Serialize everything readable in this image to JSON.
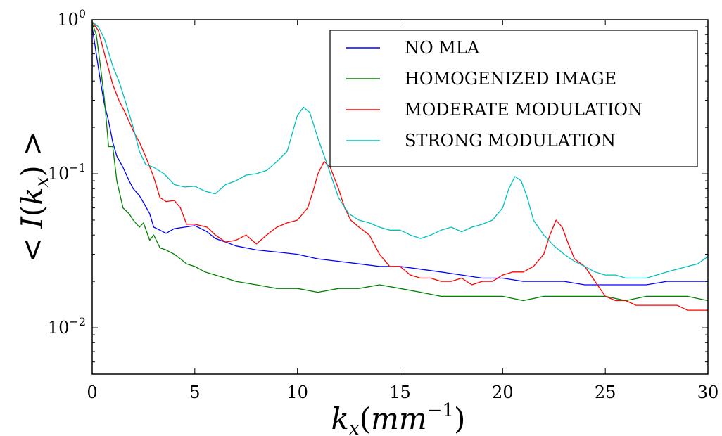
{
  "chart_data": {
    "type": "line",
    "title": "",
    "xlabel": "k_x(mm^-1)",
    "ylabel": "< I(k_x) >",
    "xlim": [
      0,
      30
    ],
    "ylim": [
      0.005,
      1
    ],
    "yscale": "log",
    "grid": false,
    "legend_position": "top-right",
    "x_ticks": [
      0,
      5,
      10,
      15,
      20,
      25,
      30
    ],
    "x_tick_labels": [
      "0",
      "5",
      "10",
      "15",
      "20",
      "25",
      "30"
    ],
    "y_ticks": [
      1,
      0.1,
      0.01
    ],
    "y_tick_labels": [
      {
        "base": "10",
        "exp": "0"
      },
      {
        "base": "10",
        "exp": "−1"
      },
      {
        "base": "10",
        "exp": "−2"
      }
    ],
    "series": [
      {
        "name": "NO MLA",
        "color": "#0000ff",
        "points": [
          [
            0,
            0.9
          ],
          [
            0.2,
            0.6
          ],
          [
            0.4,
            0.4
          ],
          [
            0.6,
            0.28
          ],
          [
            0.8,
            0.22
          ],
          [
            1,
            0.16
          ],
          [
            1.2,
            0.13
          ],
          [
            1.5,
            0.11
          ],
          [
            1.8,
            0.09
          ],
          [
            2,
            0.08
          ],
          [
            2.3,
            0.072
          ],
          [
            2.5,
            0.065
          ],
          [
            2.8,
            0.055
          ],
          [
            3,
            0.045
          ],
          [
            3.3,
            0.043
          ],
          [
            3.6,
            0.041
          ],
          [
            4,
            0.044
          ],
          [
            4.5,
            0.045
          ],
          [
            5,
            0.046
          ],
          [
            5.3,
            0.044
          ],
          [
            5.6,
            0.042
          ],
          [
            6,
            0.038
          ],
          [
            6.5,
            0.036
          ],
          [
            7,
            0.034
          ],
          [
            7.5,
            0.033
          ],
          [
            8,
            0.032
          ],
          [
            9,
            0.031
          ],
          [
            10,
            0.03
          ],
          [
            11,
            0.028
          ],
          [
            12,
            0.027
          ],
          [
            13,
            0.026
          ],
          [
            14,
            0.025
          ],
          [
            15,
            0.025
          ],
          [
            16,
            0.024
          ],
          [
            17,
            0.023
          ],
          [
            18,
            0.022
          ],
          [
            19,
            0.021
          ],
          [
            20,
            0.021
          ],
          [
            21,
            0.02
          ],
          [
            22,
            0.02
          ],
          [
            23,
            0.02
          ],
          [
            24,
            0.019
          ],
          [
            25,
            0.019
          ],
          [
            26,
            0.019
          ],
          [
            27,
            0.019
          ],
          [
            28,
            0.02
          ],
          [
            29,
            0.02
          ],
          [
            30,
            0.02
          ]
        ]
      },
      {
        "name": "HOMOGENIZED IMAGE",
        "color": "#008000",
        "points": [
          [
            0,
            0.95
          ],
          [
            0.2,
            0.8
          ],
          [
            0.4,
            0.5
          ],
          [
            0.6,
            0.3
          ],
          [
            0.8,
            0.15
          ],
          [
            1,
            0.15
          ],
          [
            1.2,
            0.09
          ],
          [
            1.5,
            0.06
          ],
          [
            1.8,
            0.055
          ],
          [
            2,
            0.05
          ],
          [
            2.3,
            0.045
          ],
          [
            2.5,
            0.048
          ],
          [
            2.8,
            0.037
          ],
          [
            3,
            0.04
          ],
          [
            3.3,
            0.033
          ],
          [
            3.6,
            0.032
          ],
          [
            4,
            0.03
          ],
          [
            4.3,
            0.028
          ],
          [
            4.6,
            0.026
          ],
          [
            5,
            0.025
          ],
          [
            5.5,
            0.023
          ],
          [
            6,
            0.022
          ],
          [
            6.5,
            0.021
          ],
          [
            7,
            0.02
          ],
          [
            8,
            0.019
          ],
          [
            9,
            0.018
          ],
          [
            10,
            0.018
          ],
          [
            11,
            0.017
          ],
          [
            12,
            0.018
          ],
          [
            13,
            0.018
          ],
          [
            14,
            0.019
          ],
          [
            15,
            0.018
          ],
          [
            16,
            0.017
          ],
          [
            17,
            0.016
          ],
          [
            18,
            0.016
          ],
          [
            19,
            0.016
          ],
          [
            20,
            0.016
          ],
          [
            21,
            0.015
          ],
          [
            22,
            0.016
          ],
          [
            23,
            0.016
          ],
          [
            24,
            0.016
          ],
          [
            25,
            0.016
          ],
          [
            26,
            0.015
          ],
          [
            27,
            0.016
          ],
          [
            28,
            0.016
          ],
          [
            29,
            0.016
          ],
          [
            30,
            0.015
          ]
        ]
      },
      {
        "name": "MODERATE MODULATION",
        "color": "#ff0000",
        "points": [
          [
            0,
            0.97
          ],
          [
            0.3,
            0.85
          ],
          [
            0.6,
            0.6
          ],
          [
            1,
            0.38
          ],
          [
            1.3,
            0.3
          ],
          [
            1.6,
            0.25
          ],
          [
            2,
            0.19
          ],
          [
            2.3,
            0.16
          ],
          [
            2.6,
            0.13
          ],
          [
            3,
            0.095
          ],
          [
            3.3,
            0.07
          ],
          [
            3.6,
            0.066
          ],
          [
            4,
            0.067
          ],
          [
            4.3,
            0.06
          ],
          [
            4.6,
            0.047
          ],
          [
            5,
            0.047
          ],
          [
            5.3,
            0.046
          ],
          [
            5.6,
            0.045
          ],
          [
            6,
            0.04
          ],
          [
            6.5,
            0.036
          ],
          [
            7,
            0.037
          ],
          [
            7.5,
            0.04
          ],
          [
            8,
            0.035
          ],
          [
            8.5,
            0.04
          ],
          [
            9,
            0.045
          ],
          [
            9.5,
            0.048
          ],
          [
            10,
            0.05
          ],
          [
            10.5,
            0.06
          ],
          [
            10.8,
            0.08
          ],
          [
            11,
            0.1
          ],
          [
            11.3,
            0.12
          ],
          [
            11.6,
            0.11
          ],
          [
            12,
            0.08
          ],
          [
            12.3,
            0.06
          ],
          [
            12.6,
            0.05
          ],
          [
            13,
            0.045
          ],
          [
            13.5,
            0.04
          ],
          [
            14,
            0.03
          ],
          [
            14.5,
            0.025
          ],
          [
            15,
            0.025
          ],
          [
            15.5,
            0.022
          ],
          [
            16,
            0.021
          ],
          [
            16.5,
            0.021
          ],
          [
            17,
            0.02
          ],
          [
            17.5,
            0.02
          ],
          [
            18,
            0.021
          ],
          [
            18.5,
            0.019
          ],
          [
            19,
            0.02
          ],
          [
            19.5,
            0.02
          ],
          [
            20,
            0.022
          ],
          [
            20.5,
            0.023
          ],
          [
            21,
            0.023
          ],
          [
            21.5,
            0.025
          ],
          [
            22,
            0.03
          ],
          [
            22.3,
            0.04
          ],
          [
            22.6,
            0.05
          ],
          [
            22.9,
            0.045
          ],
          [
            23.2,
            0.035
          ],
          [
            23.5,
            0.028
          ],
          [
            24,
            0.025
          ],
          [
            24.5,
            0.02
          ],
          [
            25,
            0.016
          ],
          [
            25.5,
            0.015
          ],
          [
            26,
            0.015
          ],
          [
            26.5,
            0.014
          ],
          [
            27,
            0.014
          ],
          [
            27.5,
            0.014
          ],
          [
            28,
            0.014
          ],
          [
            28.5,
            0.014
          ],
          [
            29,
            0.013
          ],
          [
            29.5,
            0.013
          ],
          [
            30,
            0.013
          ]
        ]
      },
      {
        "name": "STRONG MODULATION",
        "color": "#00bfbf",
        "points": [
          [
            0,
            0.97
          ],
          [
            0.3,
            0.9
          ],
          [
            0.6,
            0.75
          ],
          [
            1,
            0.5
          ],
          [
            1.3,
            0.4
          ],
          [
            1.6,
            0.3
          ],
          [
            2,
            0.2
          ],
          [
            2.3,
            0.14
          ],
          [
            2.6,
            0.115
          ],
          [
            3,
            0.11
          ],
          [
            3.5,
            0.1
          ],
          [
            4,
            0.085
          ],
          [
            4.5,
            0.082
          ],
          [
            5,
            0.083
          ],
          [
            5.5,
            0.077
          ],
          [
            6,
            0.074
          ],
          [
            6.5,
            0.085
          ],
          [
            7,
            0.09
          ],
          [
            7.5,
            0.098
          ],
          [
            8,
            0.1
          ],
          [
            8.5,
            0.105
          ],
          [
            9,
            0.12
          ],
          [
            9.5,
            0.14
          ],
          [
            10,
            0.24
          ],
          [
            10.3,
            0.27
          ],
          [
            10.6,
            0.25
          ],
          [
            11,
            0.17
          ],
          [
            11.5,
            0.11
          ],
          [
            12,
            0.07
          ],
          [
            12.5,
            0.055
          ],
          [
            13,
            0.05
          ],
          [
            13.5,
            0.048
          ],
          [
            14,
            0.045
          ],
          [
            14.5,
            0.043
          ],
          [
            15,
            0.043
          ],
          [
            15.5,
            0.04
          ],
          [
            16,
            0.038
          ],
          [
            16.5,
            0.04
          ],
          [
            17,
            0.043
          ],
          [
            17.5,
            0.045
          ],
          [
            18,
            0.042
          ],
          [
            18.5,
            0.045
          ],
          [
            19,
            0.047
          ],
          [
            19.5,
            0.05
          ],
          [
            20,
            0.06
          ],
          [
            20.3,
            0.08
          ],
          [
            20.6,
            0.096
          ],
          [
            20.9,
            0.09
          ],
          [
            21.2,
            0.07
          ],
          [
            21.5,
            0.05
          ],
          [
            22,
            0.04
          ],
          [
            22.5,
            0.034
          ],
          [
            23,
            0.03
          ],
          [
            23.5,
            0.027
          ],
          [
            24,
            0.025
          ],
          [
            24.5,
            0.023
          ],
          [
            25,
            0.022
          ],
          [
            25.5,
            0.022
          ],
          [
            26,
            0.021
          ],
          [
            26.5,
            0.021
          ],
          [
            27,
            0.021
          ],
          [
            27.5,
            0.022
          ],
          [
            28,
            0.023
          ],
          [
            28.5,
            0.024
          ],
          [
            29,
            0.025
          ],
          [
            29.5,
            0.026
          ],
          [
            30,
            0.029
          ]
        ]
      }
    ]
  }
}
